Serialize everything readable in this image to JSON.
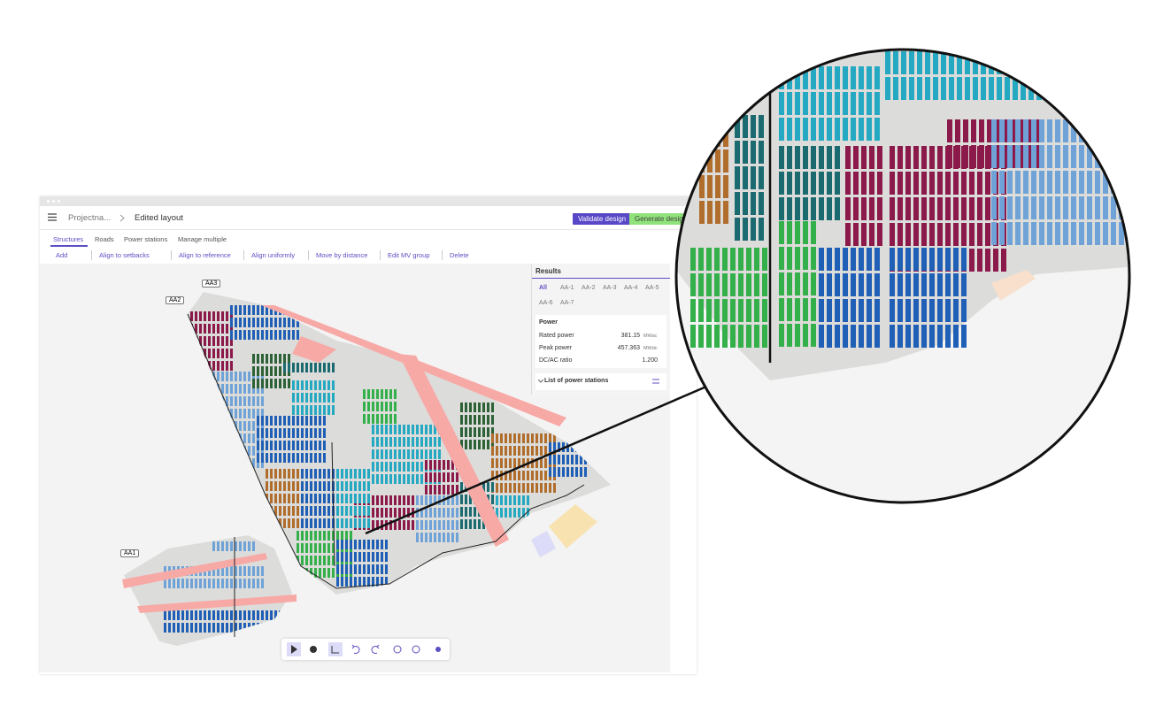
{
  "header": {
    "project": "Projectna...",
    "layout": "Edited layout",
    "validate": "Validate design",
    "generate": "Generate design"
  },
  "tabs": [
    "Structures",
    "Roads",
    "Power stations",
    "Manage multiple"
  ],
  "toolbar": [
    "Add",
    "Align to setbacks",
    "Align to reference",
    "Align uniformly",
    "Move by distance",
    "Edit MV group",
    "Delete"
  ],
  "map": {
    "labels": [
      "AA3",
      "AA2",
      "AA1"
    ]
  },
  "results": {
    "title": "Results",
    "tabs": [
      "All",
      "AA-1",
      "AA-2",
      "AA-3",
      "AA-4",
      "AA-5",
      "AA-6",
      "AA-7"
    ],
    "section": "Power",
    "rows": [
      {
        "label": "Rated power",
        "value": "381.15",
        "unit": "MWac"
      },
      {
        "label": "Peak power",
        "value": "457.363",
        "unit": "MWdc"
      },
      {
        "label": "DC/AC ratio",
        "value": "1.200",
        "unit": ""
      }
    ],
    "list": "List of power stations"
  }
}
